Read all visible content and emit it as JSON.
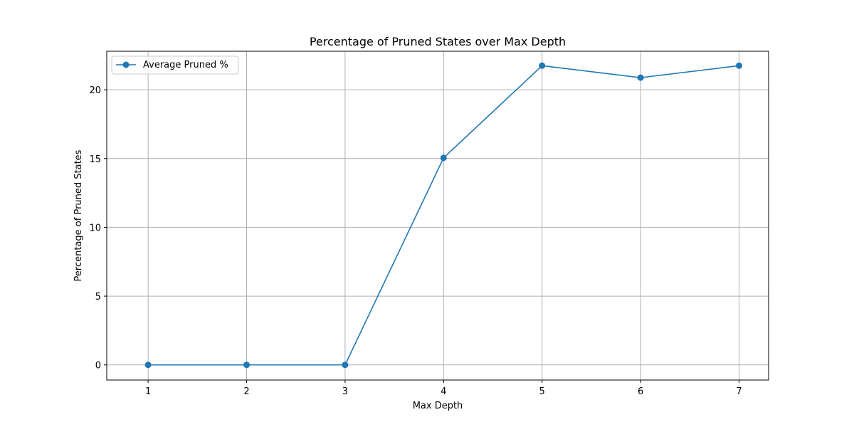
{
  "chart_data": {
    "type": "line",
    "title": "Percentage of Pruned States over Max Depth",
    "xlabel": "Max Depth",
    "ylabel": "Percentage of Pruned States",
    "x": [
      1,
      2,
      3,
      4,
      5,
      6,
      7
    ],
    "xticks": [
      "1",
      "2",
      "3",
      "4",
      "5",
      "6",
      "7"
    ],
    "yticks": [
      "0",
      "5",
      "10",
      "15",
      "20"
    ],
    "xlim": [
      0.58,
      7.3
    ],
    "ylim": [
      -1.1,
      22.8
    ],
    "grid": true,
    "legend_position": "top-left",
    "series": [
      {
        "name": "Average Pruned %",
        "values": [
          0,
          0,
          0,
          15.05,
          21.75,
          20.88,
          21.75
        ],
        "color": "#1f77b4",
        "marker": "circle"
      }
    ]
  }
}
